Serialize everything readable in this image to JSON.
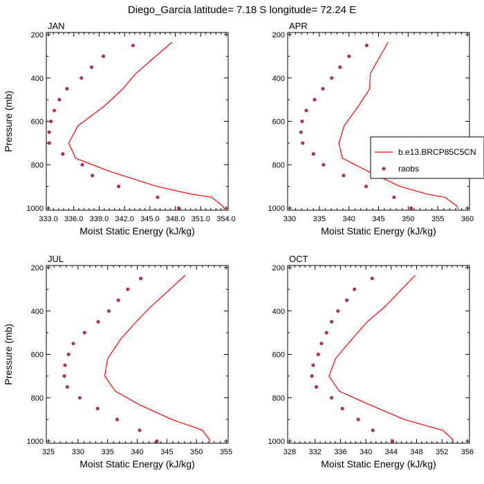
{
  "figure": {
    "title": "Diego_Garcia  latitude= 7.18 S longitude= 72.24 E"
  },
  "legend": {
    "model_label": "b.e13.BRCP85C5CN",
    "obs_label": "raobs",
    "model_color": "#ff0000",
    "obs_color": "#b03060"
  },
  "chart_data": [
    {
      "type": "line",
      "title": "JAN",
      "xlabel": "Moist Static Energy (kJ/kg)",
      "ylabel": "Pressure (mb)",
      "xlim": [
        333,
        354
      ],
      "ylim": [
        1000,
        200
      ],
      "xticks": [
        333,
        336,
        339,
        342,
        345,
        348,
        351,
        354
      ],
      "xtick_labels": [
        "333.0",
        "336.0",
        "339.0",
        "342.0",
        "345.0",
        "348.0",
        "351.0",
        "354.0"
      ],
      "yticks": [
        200,
        400,
        600,
        800,
        1000
      ],
      "series": [
        {
          "name": "b.e13.BRCP85C5CN",
          "kind": "line",
          "points": [
            [
              347.6,
              235
            ],
            [
              343.3,
              380
            ],
            [
              341.8,
              450
            ],
            [
              339.6,
              530
            ],
            [
              336.5,
              620
            ],
            [
              335.4,
              700
            ],
            [
              336.2,
              770
            ],
            [
              340.2,
              830
            ],
            [
              345.8,
              900
            ],
            [
              349.8,
              935
            ],
            [
              352.3,
              950
            ],
            [
              353.6,
              990
            ],
            [
              353.8,
              1005
            ]
          ]
        },
        {
          "name": "raobs",
          "kind": "scatter",
          "points": [
            [
              343.0,
              250
            ],
            [
              339.5,
              300
            ],
            [
              338.1,
              350
            ],
            [
              336.9,
              400
            ],
            [
              335.2,
              450
            ],
            [
              334.3,
              500
            ],
            [
              333.7,
              550
            ],
            [
              333.3,
              600
            ],
            [
              333.1,
              650
            ],
            [
              333.1,
              700
            ],
            [
              334.7,
              750
            ],
            [
              337.0,
              800
            ],
            [
              338.2,
              850
            ],
            [
              341.3,
              900
            ],
            [
              345.9,
              950
            ],
            [
              348.4,
              1000
            ]
          ]
        }
      ]
    },
    {
      "type": "line",
      "title": "APR",
      "xlabel": "Moist Static Energy (kJ/kg)",
      "ylabel": "",
      "xlim": [
        330,
        360
      ],
      "ylim": [
        1000,
        200
      ],
      "xticks": [
        330,
        335,
        340,
        345,
        350,
        355,
        360
      ],
      "xtick_labels": [
        "330",
        "335",
        "340",
        "345",
        "350",
        "355",
        "360"
      ],
      "yticks": [
        200,
        400,
        600,
        800,
        1000
      ],
      "series": [
        {
          "name": "b.e13.BRCP85C5CN",
          "kind": "line",
          "points": [
            [
              346.6,
              235
            ],
            [
              343.6,
              380
            ],
            [
              343.5,
              450
            ],
            [
              341.6,
              530
            ],
            [
              339.2,
              620
            ],
            [
              338.3,
              700
            ],
            [
              338.9,
              770
            ],
            [
              343.2,
              830
            ],
            [
              348.6,
              900
            ],
            [
              353.1,
              935
            ],
            [
              356.2,
              950
            ],
            [
              358.2,
              990
            ],
            [
              358.4,
              1005
            ]
          ]
        },
        {
          "name": "raobs",
          "kind": "scatter",
          "points": [
            [
              343.0,
              250
            ],
            [
              340.0,
              300
            ],
            [
              338.5,
              350
            ],
            [
              337.1,
              400
            ],
            [
              335.6,
              450
            ],
            [
              334.2,
              500
            ],
            [
              332.8,
              550
            ],
            [
              332.1,
              600
            ],
            [
              331.9,
              650
            ],
            [
              332.2,
              700
            ],
            [
              334.0,
              750
            ],
            [
              335.7,
              800
            ],
            [
              339.1,
              850
            ],
            [
              342.9,
              900
            ],
            [
              347.6,
              950
            ],
            [
              350.5,
              1000
            ]
          ]
        }
      ]
    },
    {
      "type": "line",
      "title": "JUL",
      "xlabel": "Moist Static Energy (kJ/kg)",
      "ylabel": "Pressure (mb)",
      "xlim": [
        325,
        355
      ],
      "ylim": [
        1000,
        200
      ],
      "xticks": [
        325,
        330,
        335,
        340,
        345,
        350,
        355
      ],
      "xtick_labels": [
        "325",
        "330",
        "335",
        "340",
        "345",
        "350",
        "355"
      ],
      "yticks": [
        200,
        400,
        600,
        800,
        1000
      ],
      "series": [
        {
          "name": "b.e13.BRCP85C5CN",
          "kind": "line",
          "points": [
            [
              348.1,
              235
            ],
            [
              342.3,
              380
            ],
            [
              339.8,
              450
            ],
            [
              337.2,
              530
            ],
            [
              335.0,
              620
            ],
            [
              334.5,
              700
            ],
            [
              336.3,
              770
            ],
            [
              340.2,
              830
            ],
            [
              345.8,
              900
            ],
            [
              349.5,
              935
            ],
            [
              351.0,
              950
            ],
            [
              352.1,
              990
            ],
            [
              352.3,
              1005
            ]
          ]
        },
        {
          "name": "raobs",
          "kind": "scatter",
          "points": [
            [
              340.6,
              250
            ],
            [
              338.4,
              300
            ],
            [
              336.8,
              350
            ],
            [
              335.2,
              400
            ],
            [
              333.4,
              450
            ],
            [
              331.1,
              500
            ],
            [
              329.2,
              550
            ],
            [
              328.4,
              600
            ],
            [
              327.8,
              650
            ],
            [
              327.7,
              700
            ],
            [
              328.2,
              750
            ],
            [
              330.3,
              800
            ],
            [
              333.3,
              850
            ],
            [
              336.6,
              900
            ],
            [
              340.4,
              950
            ],
            [
              343.3,
              1000
            ]
          ]
        }
      ]
    },
    {
      "type": "line",
      "title": "OCT",
      "xlabel": "Moist Static Energy (kJ/kg)",
      "ylabel": "",
      "xlim": [
        328,
        356
      ],
      "ylim": [
        1000,
        200
      ],
      "xticks": [
        328,
        332,
        336,
        340,
        344,
        348,
        352,
        356
      ],
      "xtick_labels": [
        "328",
        "332",
        "336",
        "340",
        "344",
        "348",
        "352",
        "356"
      ],
      "yticks": [
        200,
        400,
        600,
        800,
        1000
      ],
      "series": [
        {
          "name": "b.e13.BRCP85C5CN",
          "kind": "line",
          "points": [
            [
              347.8,
              235
            ],
            [
              343.0,
              380
            ],
            [
              340.2,
              450
            ],
            [
              337.8,
              530
            ],
            [
              335.2,
              620
            ],
            [
              334.2,
              700
            ],
            [
              335.8,
              770
            ],
            [
              340.4,
              830
            ],
            [
              346.0,
              900
            ],
            [
              350.2,
              935
            ],
            [
              352.1,
              950
            ],
            [
              353.6,
              990
            ],
            [
              353.8,
              1005
            ]
          ]
        },
        {
          "name": "raobs",
          "kind": "scatter",
          "points": [
            [
              341.0,
              250
            ],
            [
              338.2,
              300
            ],
            [
              337.0,
              350
            ],
            [
              335.6,
              400
            ],
            [
              334.6,
              450
            ],
            [
              333.8,
              500
            ],
            [
              333.0,
              550
            ],
            [
              332.5,
              600
            ],
            [
              331.7,
              650
            ],
            [
              331.5,
              700
            ],
            [
              332.2,
              750
            ],
            [
              334.6,
              800
            ],
            [
              336.3,
              850
            ],
            [
              338.8,
              900
            ],
            [
              341.1,
              950
            ],
            [
              344.2,
              1000
            ]
          ]
        }
      ]
    }
  ]
}
